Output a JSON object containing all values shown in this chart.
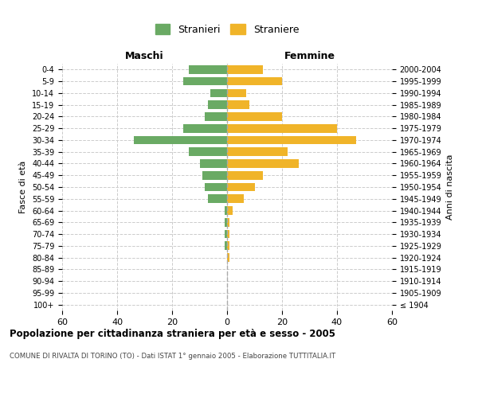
{
  "age_groups": [
    "100+",
    "95-99",
    "90-94",
    "85-89",
    "80-84",
    "75-79",
    "70-74",
    "65-69",
    "60-64",
    "55-59",
    "50-54",
    "45-49",
    "40-44",
    "35-39",
    "30-34",
    "25-29",
    "20-24",
    "15-19",
    "10-14",
    "5-9",
    "0-4"
  ],
  "birth_years": [
    "≤ 1904",
    "1905-1909",
    "1910-1914",
    "1915-1919",
    "1920-1924",
    "1925-1929",
    "1930-1934",
    "1935-1939",
    "1940-1944",
    "1945-1949",
    "1950-1954",
    "1955-1959",
    "1960-1964",
    "1965-1969",
    "1970-1974",
    "1975-1979",
    "1980-1984",
    "1985-1989",
    "1990-1994",
    "1995-1999",
    "2000-2004"
  ],
  "maschi": [
    0,
    0,
    0,
    0,
    0,
    1,
    1,
    1,
    1,
    7,
    8,
    9,
    10,
    14,
    34,
    16,
    8,
    7,
    6,
    16,
    14
  ],
  "femmine": [
    0,
    0,
    0,
    0,
    1,
    1,
    1,
    1,
    2,
    6,
    10,
    13,
    26,
    22,
    47,
    40,
    20,
    8,
    7,
    20,
    13
  ],
  "maschi_color": "#6aaa64",
  "femmine_color": "#f0b429",
  "center_line_color": "#aaaaaa",
  "grid_color": "#cccccc",
  "background_color": "#ffffff",
  "title": "Popolazione per cittadinanza straniera per età e sesso - 2005",
  "subtitle": "COMUNE DI RIVALTA DI TORINO (TO) - Dati ISTAT 1° gennaio 2005 - Elaborazione TUTTITALIA.IT",
  "xlabel_left": "Maschi",
  "xlabel_right": "Femmine",
  "ylabel_left": "Fasce di età",
  "ylabel_right": "Anni di nascita",
  "xlim": 60,
  "legend_stranieri": "Stranieri",
  "legend_straniere": "Straniere"
}
